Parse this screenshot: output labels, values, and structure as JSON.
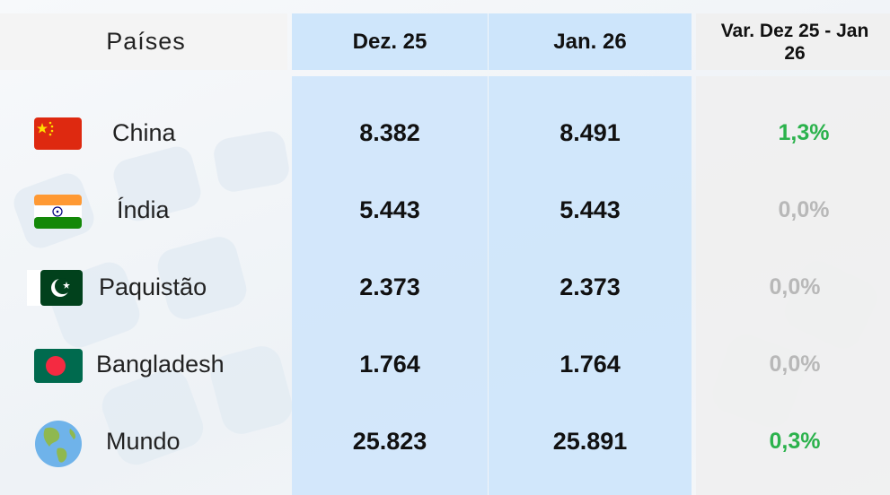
{
  "table": {
    "header": [
      "Países",
      "Dez. 25",
      "Jan. 26",
      "Var. Dez 25 - Jan 26"
    ],
    "rows": [
      {
        "country": "China",
        "dec": "8.382",
        "jan": "8.491",
        "var": "1,3%",
        "var_color": "#2bb24c"
      },
      {
        "country": "Índia",
        "dec": "5.443",
        "jan": "5.443",
        "var": "0,0%",
        "var_color": "#b8b8b8"
      },
      {
        "country": "Paquistão",
        "dec": "2.373",
        "jan": "2.373",
        "var": "0,0%",
        "var_color": "#b8b8b8"
      },
      {
        "country": "Bangladesh",
        "dec": "1.764",
        "jan": "1.764",
        "var": "0,0%",
        "var_color": "#b8b8b8"
      },
      {
        "country": "Mundo",
        "dec": "25.823",
        "jan": "25.891",
        "var": "0,3%",
        "var_color": "#2bb24c"
      }
    ]
  }
}
